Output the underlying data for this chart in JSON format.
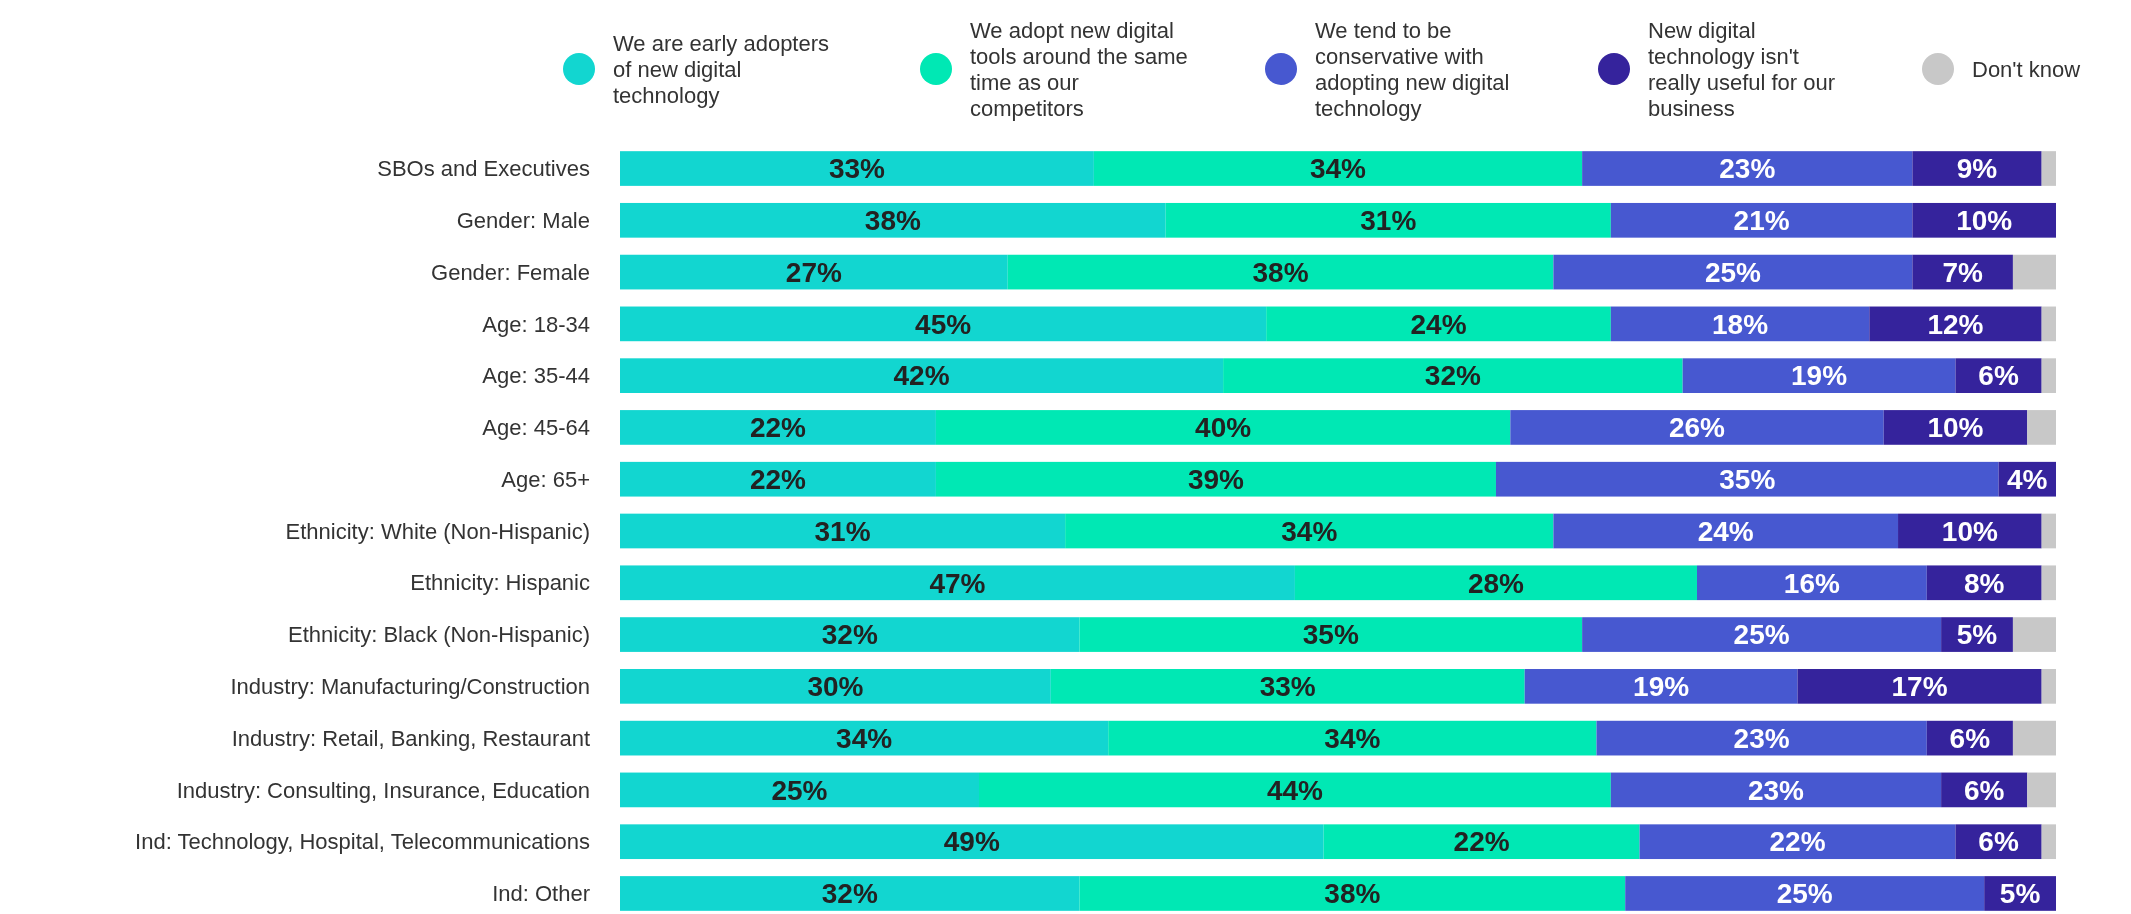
{
  "chart_data": {
    "type": "bar",
    "orientation": "horizontal",
    "stacked": true,
    "legend": "top",
    "xlim": [
      0,
      100
    ],
    "tick_labels": "y",
    "categories": [
      "SBOs and Executives",
      "Gender: Male",
      "Gender: Female",
      "Age: 18-34",
      "Age: 35-44",
      "Age: 45-64",
      "Age: 65+",
      "Ethnicity: White (Non-Hispanic)",
      "Ethnicity: Hispanic",
      "Ethnicity: Black (Non-Hispanic)",
      "Industry: Manufacturing/Construction",
      "Industry: Retail, Banking, Restaurant",
      "Industry: Consulting, Insurance, Education",
      "Ind: Technology, Hospital, Telecommunications",
      "Ind: Other"
    ],
    "series": [
      {
        "name": "We are early adopters of new digital technology",
        "color": "#12d6d0",
        "values": [
          33,
          38,
          27,
          45,
          42,
          22,
          22,
          31,
          47,
          32,
          30,
          34,
          25,
          49,
          32
        ],
        "value_labels": [
          "33%",
          "38%",
          "27%",
          "45%",
          "42%",
          "22%",
          "22%",
          "31%",
          "47%",
          "32%",
          "30%",
          "34%",
          "25%",
          "49%",
          "32%"
        ]
      },
      {
        "name": "We adopt new digital tools around the same time as our competitors",
        "color": "#00e8b4",
        "values": [
          34,
          31,
          38,
          24,
          32,
          40,
          39,
          34,
          28,
          35,
          33,
          34,
          44,
          22,
          38
        ],
        "value_labels": [
          "34%",
          "31%",
          "38%",
          "24%",
          "32%",
          "40%",
          "39%",
          "34%",
          "28%",
          "35%",
          "33%",
          "34%",
          "44%",
          "22%",
          "38%"
        ]
      },
      {
        "name": "We tend to be conservative with adopting new digital technology",
        "color": "#4758d0",
        "values": [
          23,
          21,
          25,
          18,
          19,
          26,
          35,
          24,
          16,
          25,
          19,
          23,
          23,
          22,
          25
        ],
        "value_labels": [
          "23%",
          "21%",
          "25%",
          "18%",
          "19%",
          "26%",
          "35%",
          "24%",
          "16%",
          "25%",
          "19%",
          "23%",
          "23%",
          "22%",
          "25%"
        ]
      },
      {
        "name": "New digital technology isn't really useful for our business",
        "color": "#35239c",
        "values": [
          9,
          10,
          7,
          12,
          6,
          10,
          4,
          10,
          8,
          5,
          17,
          6,
          6,
          6,
          5
        ],
        "value_labels": [
          "9%",
          "10%",
          "7%",
          "12%",
          "6%",
          "10%",
          "4%",
          "10%",
          "8%",
          "5%",
          "17%",
          "6%",
          "6%",
          "6%",
          "5%"
        ]
      },
      {
        "name": "Don't know",
        "color": "#c8c8c8",
        "values": [
          1,
          null,
          3,
          1,
          1,
          2,
          null,
          1,
          1,
          3,
          1,
          3,
          2,
          1,
          null
        ],
        "value_labels": [
          null,
          null,
          null,
          null,
          null,
          null,
          null,
          null,
          null,
          null,
          null,
          null,
          null,
          null,
          null
        ]
      }
    ]
  }
}
